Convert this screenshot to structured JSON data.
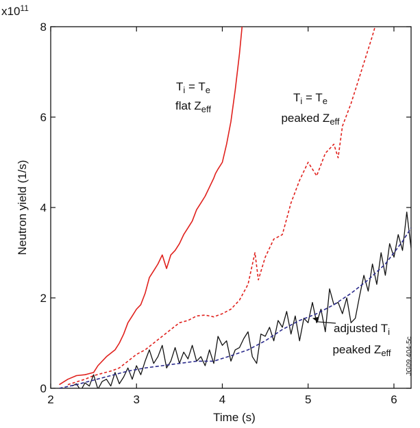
{
  "chart_data": {
    "type": "line",
    "xlabel": "Time (s)",
    "ylabel": "Neutron yield (1/s)",
    "y_multiplier_label": "x10",
    "y_multiplier_exp": "11",
    "xlim": [
      2.0,
      6.2
    ],
    "ylim": [
      0,
      8
    ],
    "x_ticks": [
      2,
      3,
      4,
      5,
      6
    ],
    "y_ticks": [
      0,
      2,
      4,
      6,
      8
    ],
    "grid": false,
    "side_code": "JG09.404-5c",
    "annotations": [
      {
        "key": "flat",
        "lines": [
          [
            "T",
            "i",
            " = T",
            "e"
          ],
          [
            "flat Z",
            "eff"
          ]
        ]
      },
      {
        "key": "peaked",
        "lines": [
          [
            "T",
            "i",
            " = T",
            "e"
          ],
          [
            "peaked Z",
            "eff"
          ]
        ]
      },
      {
        "key": "adjusted",
        "lines": [
          [
            "adjusted T",
            "i"
          ],
          [
            "peaked Z",
            "eff"
          ]
        ]
      }
    ],
    "series": [
      {
        "key": "ti_te_flat_zeff",
        "color": "#e0201c",
        "style": "solid",
        "x": [
          2.1,
          2.2,
          2.3,
          2.4,
          2.5,
          2.55,
          2.65,
          2.75,
          2.8,
          2.85,
          2.9,
          2.95,
          3.0,
          3.05,
          3.1,
          3.15,
          3.2,
          3.25,
          3.3,
          3.35,
          3.4,
          3.45,
          3.5,
          3.55,
          3.6,
          3.65,
          3.7,
          3.75,
          3.8,
          3.85,
          3.9,
          3.92,
          3.95,
          4.0,
          4.05,
          4.1,
          4.15,
          4.2,
          4.23
        ],
        "y": [
          0.08,
          0.2,
          0.28,
          0.3,
          0.35,
          0.5,
          0.7,
          0.85,
          1.0,
          1.2,
          1.45,
          1.6,
          1.75,
          1.85,
          2.1,
          2.45,
          2.6,
          2.75,
          2.95,
          2.65,
          2.95,
          3.05,
          3.2,
          3.4,
          3.55,
          3.7,
          3.95,
          4.1,
          4.25,
          4.45,
          4.65,
          4.75,
          4.85,
          5.0,
          5.4,
          5.9,
          6.6,
          7.4,
          8.0
        ]
      },
      {
        "key": "ti_te_peaked_zeff",
        "color": "#e0201c",
        "style": "dashed",
        "x": [
          2.2,
          2.4,
          2.5,
          2.7,
          2.8,
          2.9,
          3.0,
          3.1,
          3.2,
          3.3,
          3.4,
          3.5,
          3.6,
          3.7,
          3.8,
          3.9,
          4.0,
          4.1,
          4.2,
          4.3,
          4.38,
          4.42,
          4.5,
          4.6,
          4.7,
          4.8,
          4.9,
          5.0,
          5.1,
          5.2,
          5.3,
          5.35,
          5.4,
          5.5,
          5.6,
          5.7,
          5.75,
          5.78
        ],
        "y": [
          0.08,
          0.2,
          0.28,
          0.38,
          0.45,
          0.6,
          0.75,
          0.85,
          1.0,
          1.15,
          1.3,
          1.45,
          1.5,
          1.6,
          1.62,
          1.58,
          1.65,
          1.75,
          1.95,
          2.3,
          3.0,
          2.4,
          2.9,
          3.3,
          3.4,
          4.1,
          4.6,
          5.0,
          4.7,
          5.2,
          5.4,
          5.1,
          5.8,
          6.3,
          6.9,
          7.5,
          7.8,
          8.0
        ]
      },
      {
        "key": "adjusted_ti_peaked_zeff",
        "color": "#111111",
        "style": "solid",
        "x": [
          2.25,
          2.3,
          2.35,
          2.4,
          2.45,
          2.5,
          2.55,
          2.6,
          2.65,
          2.7,
          2.75,
          2.8,
          2.85,
          2.9,
          2.95,
          3.0,
          3.05,
          3.1,
          3.15,
          3.2,
          3.25,
          3.3,
          3.35,
          3.4,
          3.45,
          3.5,
          3.55,
          3.6,
          3.65,
          3.7,
          3.75,
          3.8,
          3.85,
          3.9,
          3.95,
          4.0,
          4.05,
          4.1,
          4.15,
          4.2,
          4.25,
          4.3,
          4.35,
          4.4,
          4.45,
          4.5,
          4.55,
          4.6,
          4.65,
          4.7,
          4.75,
          4.8,
          4.85,
          4.9,
          4.95,
          5.0,
          5.05,
          5.1,
          5.15,
          5.2,
          5.25,
          5.3,
          5.35,
          5.4,
          5.45,
          5.5,
          5.55,
          5.6,
          5.65,
          5.7,
          5.75,
          5.8,
          5.85,
          5.9,
          5.95,
          6.0,
          6.05,
          6.1,
          6.15,
          6.2
        ],
        "y": [
          0.05,
          0.1,
          -0.05,
          0.12,
          0.05,
          0.3,
          -0.02,
          0.15,
          0.2,
          0.05,
          0.35,
          0.1,
          0.25,
          0.45,
          0.2,
          0.5,
          0.3,
          0.6,
          0.85,
          0.55,
          0.7,
          0.95,
          0.45,
          0.6,
          0.9,
          0.55,
          0.8,
          0.65,
          0.95,
          0.6,
          0.7,
          0.5,
          0.85,
          0.55,
          1.15,
          0.95,
          1.05,
          0.6,
          0.85,
          0.9,
          1.1,
          1.25,
          0.7,
          0.55,
          1.2,
          1.15,
          1.35,
          1.05,
          1.5,
          1.35,
          1.7,
          1.2,
          1.6,
          1.05,
          1.55,
          1.45,
          1.9,
          1.45,
          1.75,
          1.25,
          2.2,
          1.85,
          1.9,
          1.65,
          2.0,
          1.45,
          1.55,
          2.05,
          2.5,
          2.15,
          2.75,
          2.3,
          3.0,
          2.5,
          3.2,
          2.9,
          3.4,
          3.05,
          3.9,
          3.1
        ]
      },
      {
        "key": "adjusted_fit",
        "color": "#2a2a8c",
        "style": "dashed",
        "x": [
          2.1,
          2.3,
          2.5,
          2.7,
          2.9,
          3.1,
          3.3,
          3.5,
          3.7,
          3.9,
          4.1,
          4.3,
          4.5,
          4.7,
          4.9,
          5.1,
          5.3,
          5.5,
          5.7,
          5.9,
          6.1,
          6.2
        ],
        "y": [
          0.0,
          0.08,
          0.18,
          0.28,
          0.38,
          0.45,
          0.5,
          0.55,
          0.6,
          0.6,
          0.72,
          0.85,
          1.05,
          1.3,
          1.5,
          1.65,
          1.85,
          2.1,
          2.4,
          2.75,
          3.25,
          3.55
        ]
      }
    ]
  }
}
